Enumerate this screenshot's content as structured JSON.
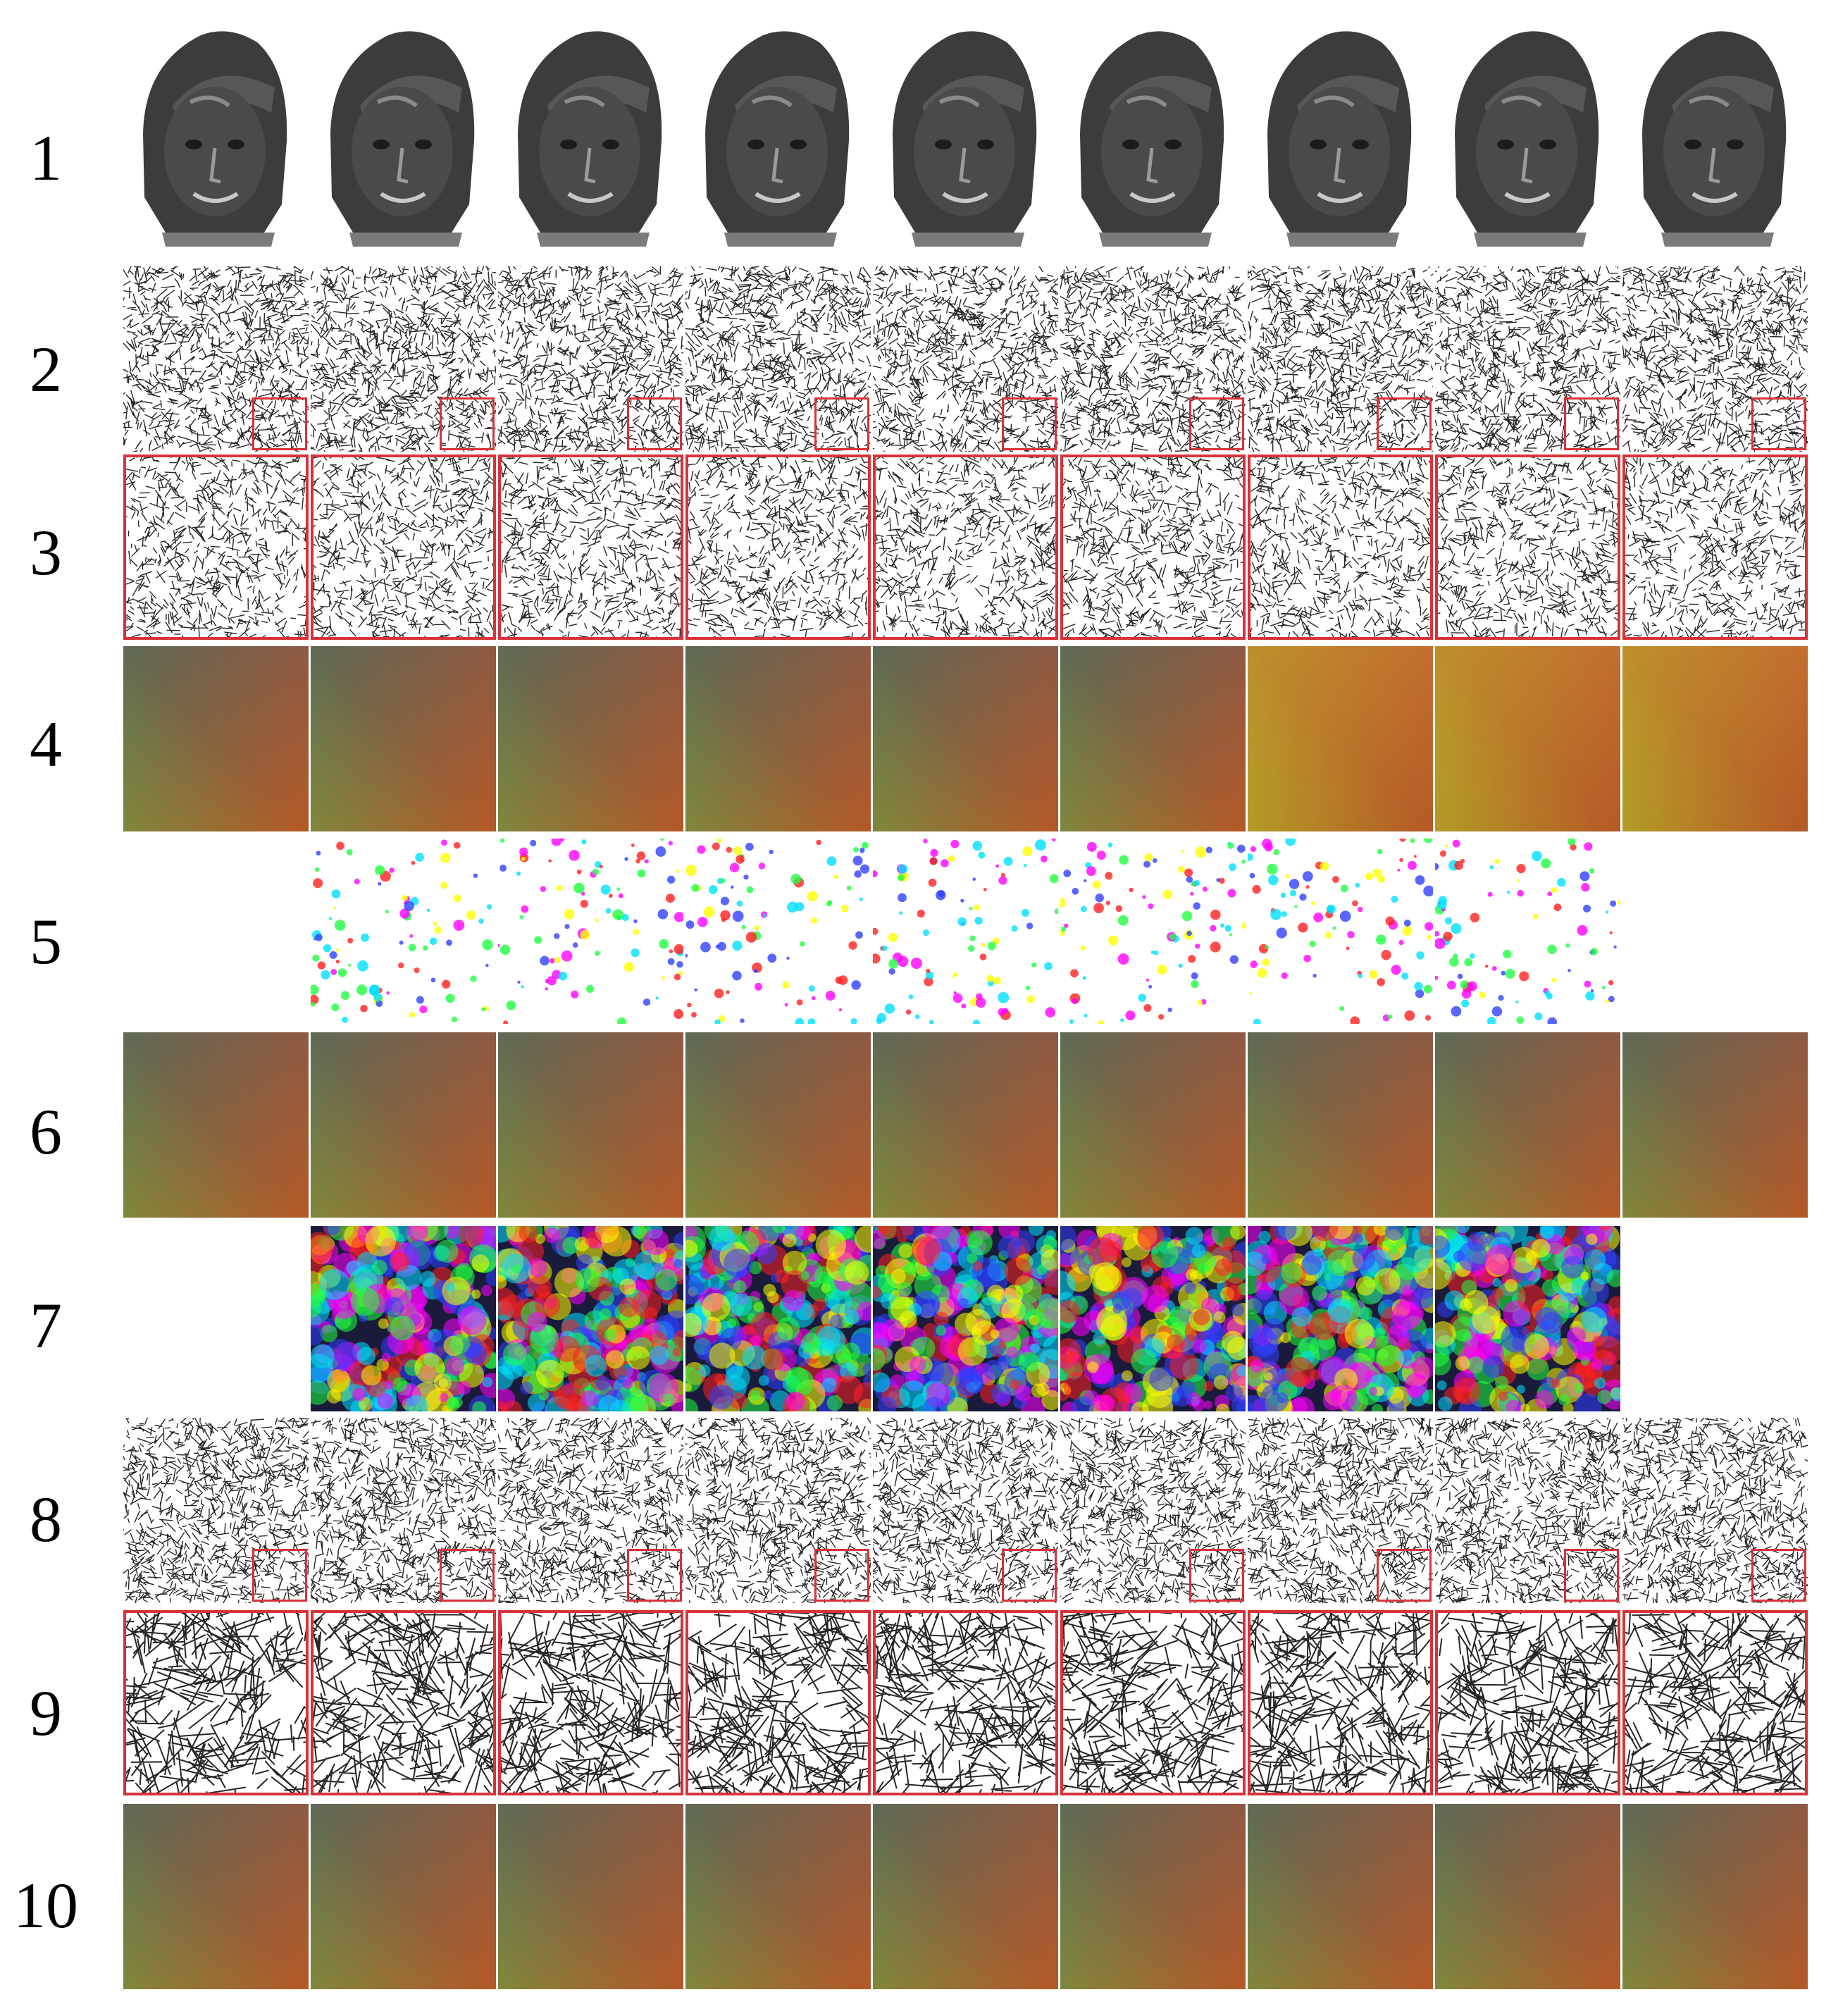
{
  "figure": {
    "row_labels": [
      "1",
      "2",
      "3",
      "4",
      "5",
      "6",
      "7",
      "8",
      "9",
      "10"
    ],
    "columns": 9,
    "rows": [
      {
        "label": "1",
        "kind": "face-render"
      },
      {
        "label": "2",
        "kind": "mesh-overview",
        "inset_box": true
      },
      {
        "label": "3",
        "kind": "mesh-zoom"
      },
      {
        "label": "4",
        "kind": "uv-gradient",
        "variant": [
          "a",
          "a",
          "a",
          "a",
          "a",
          "a",
          "b",
          "b",
          "b"
        ]
      },
      {
        "label": "5",
        "kind": "error-map-sparse",
        "present": [
          false,
          true,
          true,
          true,
          true,
          true,
          true,
          true,
          false
        ]
      },
      {
        "label": "6",
        "kind": "uv-gradient-smooth"
      },
      {
        "label": "7",
        "kind": "error-map-dense",
        "present": [
          false,
          true,
          true,
          true,
          true,
          true,
          true,
          true,
          false
        ]
      },
      {
        "label": "8",
        "kind": "mesh-overview",
        "inset_box": true
      },
      {
        "label": "9",
        "kind": "mesh-zoom-coarse"
      },
      {
        "label": "10",
        "kind": "uv-gradient-smooth"
      }
    ]
  },
  "colors": {
    "frame_red": "#d8323a",
    "uv_green": "#4cff3c",
    "uv_red": "#c8541e",
    "uv_purple": "#8a4a5a",
    "uv_orange": "#e0a020"
  }
}
